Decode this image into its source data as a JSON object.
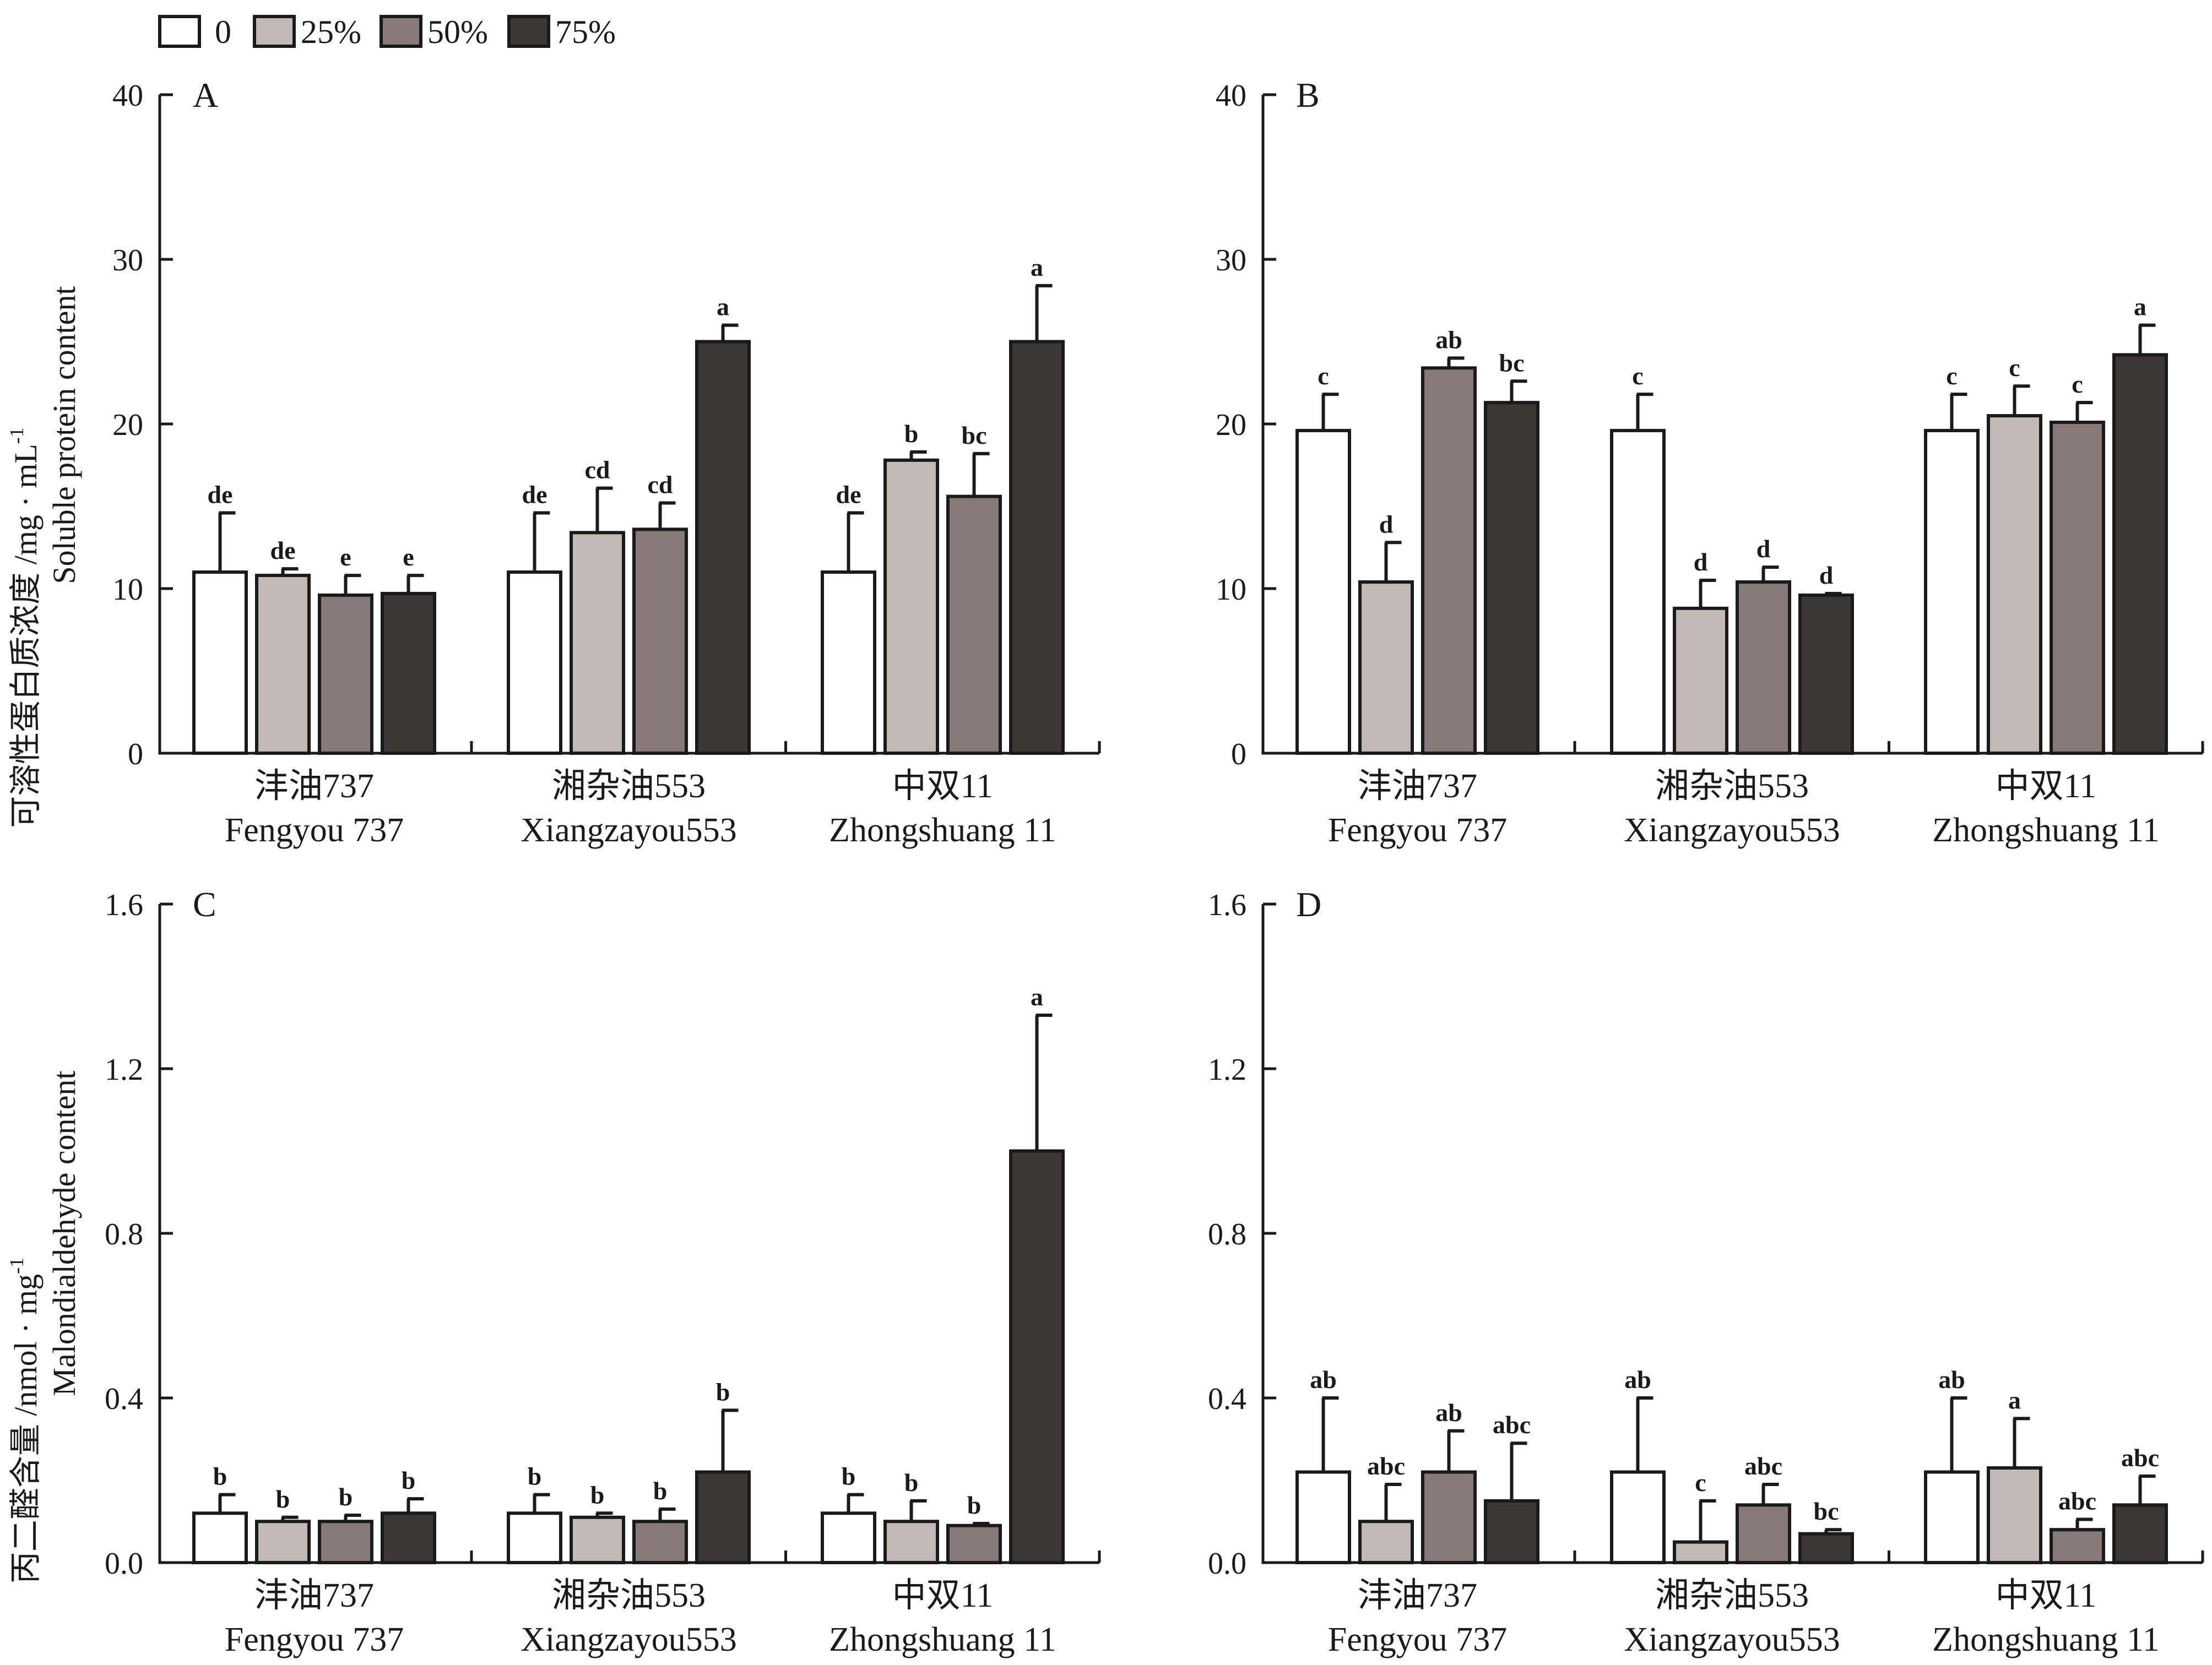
{
  "legend": {
    "entries": [
      {
        "label": "0",
        "color": "#ffffff"
      },
      {
        "label": "25%",
        "color": "#c3b9b5"
      },
      {
        "label": "50%",
        "color": "#857a78"
      },
      {
        "label": "75%",
        "color": "#3c3635"
      }
    ]
  },
  "y_labels": {
    "protein_cn": "可溶性蛋白质浓度 /mg · mL",
    "protein_sup": "-1",
    "protein_en": "Soluble protein content",
    "mda_cn": "丙二醛含量 /nmol · mg",
    "mda_sup": "-1",
    "mda_en": "Malondialdehyde content"
  },
  "categories": [
    {
      "cn": "沣油737",
      "en": "Fengyou 737"
    },
    {
      "cn": "湘杂油553",
      "en": "Xiangzayou553"
    },
    {
      "cn": "中双11",
      "en": "Zhongshuang 11"
    }
  ],
  "chart_data": [
    {
      "panel": "A",
      "type": "bar",
      "ylim": [
        0,
        40
      ],
      "yticks": [
        "0",
        "10",
        "20",
        "30",
        "40"
      ],
      "categories": [
        "沣油737",
        "湘杂油553",
        "中双11"
      ],
      "series": [
        {
          "name": "0",
          "values": [
            11.0,
            11.0,
            11.0
          ],
          "errors": [
            3.6,
            3.6,
            3.6
          ],
          "sig": [
            "de",
            "de",
            "de"
          ]
        },
        {
          "name": "25%",
          "values": [
            10.8,
            13.4,
            17.8
          ],
          "errors": [
            0.4,
            2.7,
            0.5
          ],
          "sig": [
            "de",
            "cd",
            "b"
          ]
        },
        {
          "name": "50%",
          "values": [
            9.6,
            13.6,
            15.6
          ],
          "errors": [
            1.2,
            1.6,
            2.6
          ],
          "sig": [
            "e",
            "cd",
            "bc"
          ]
        },
        {
          "name": "75%",
          "values": [
            9.7,
            25.0,
            25.0
          ],
          "errors": [
            1.1,
            1.0,
            3.4
          ],
          "sig": [
            "e",
            "a",
            "a"
          ]
        }
      ]
    },
    {
      "panel": "B",
      "type": "bar",
      "ylim": [
        0,
        40
      ],
      "yticks": [
        "0",
        "10",
        "20",
        "30",
        "40"
      ],
      "categories": [
        "沣油737",
        "湘杂油553",
        "中双11"
      ],
      "series": [
        {
          "name": "0",
          "values": [
            19.6,
            19.6,
            19.6
          ],
          "errors": [
            2.2,
            2.2,
            2.2
          ],
          "sig": [
            "c",
            "c",
            "c"
          ]
        },
        {
          "name": "25%",
          "values": [
            10.4,
            8.8,
            20.5
          ],
          "errors": [
            2.4,
            1.7,
            1.8
          ],
          "sig": [
            "d",
            "d",
            "c"
          ]
        },
        {
          "name": "50%",
          "values": [
            23.4,
            10.4,
            20.1
          ],
          "errors": [
            0.6,
            0.9,
            1.2
          ],
          "sig": [
            "ab",
            "d",
            "c"
          ]
        },
        {
          "name": "75%",
          "values": [
            21.3,
            9.6,
            24.2
          ],
          "errors": [
            1.3,
            0.1,
            1.8
          ],
          "sig": [
            "bc",
            "d",
            "a"
          ]
        }
      ]
    },
    {
      "panel": "C",
      "type": "bar",
      "ylim": [
        0,
        1.6
      ],
      "yticks": [
        "0.0",
        "0.4",
        "0.8",
        "1.2",
        "1.6"
      ],
      "categories": [
        "沣油737",
        "湘杂油553",
        "中双11"
      ],
      "series": [
        {
          "name": "0",
          "values": [
            0.12,
            0.12,
            0.12
          ],
          "errors": [
            0.045,
            0.045,
            0.045
          ],
          "sig": [
            "b",
            "b",
            "b"
          ]
        },
        {
          "name": "25%",
          "values": [
            0.1,
            0.11,
            0.1
          ],
          "errors": [
            0.01,
            0.01,
            0.05
          ],
          "sig": [
            "b",
            "b",
            "b"
          ]
        },
        {
          "name": "50%",
          "values": [
            0.1,
            0.1,
            0.09
          ],
          "errors": [
            0.015,
            0.03,
            0.005
          ],
          "sig": [
            "b",
            "b",
            "b"
          ]
        },
        {
          "name": "75%",
          "values": [
            0.12,
            0.22,
            1.0
          ],
          "errors": [
            0.035,
            0.15,
            0.33
          ],
          "sig": [
            "b",
            "b",
            "a"
          ]
        }
      ]
    },
    {
      "panel": "D",
      "type": "bar",
      "ylim": [
        0,
        1.6
      ],
      "yticks": [
        "0.0",
        "0.4",
        "0.8",
        "1.2",
        "1.6"
      ],
      "categories": [
        "沣油737",
        "湘杂油553",
        "中双11"
      ],
      "series": [
        {
          "name": "0",
          "values": [
            0.22,
            0.22,
            0.22
          ],
          "errors": [
            0.18,
            0.18,
            0.18
          ],
          "sig": [
            "ab",
            "ab",
            "ab"
          ]
        },
        {
          "name": "25%",
          "values": [
            0.1,
            0.05,
            0.23
          ],
          "errors": [
            0.09,
            0.1,
            0.12
          ],
          "sig": [
            "abc",
            "c",
            "a"
          ]
        },
        {
          "name": "50%",
          "values": [
            0.22,
            0.14,
            0.08
          ],
          "errors": [
            0.1,
            0.05,
            0.025
          ],
          "sig": [
            "ab",
            "abc",
            "abc"
          ]
        },
        {
          "name": "75%",
          "values": [
            0.15,
            0.07,
            0.14
          ],
          "errors": [
            0.14,
            0.01,
            0.07
          ],
          "sig": [
            "abc",
            "bc",
            "abc"
          ]
        }
      ]
    }
  ]
}
